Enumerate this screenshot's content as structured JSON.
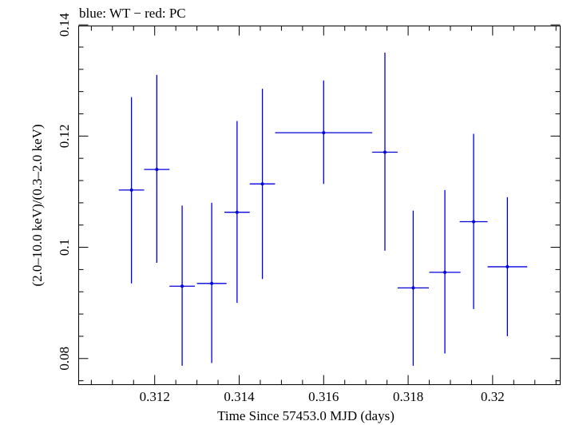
{
  "chart_data": {
    "type": "scatter",
    "title": "blue: WT − red: PC",
    "xlabel": "Time Since 57453.0 MJD (days)",
    "ylabel": "(2.0–10.0 keV)/(0.3–2.0 keV)",
    "xlim": [
      0.3102,
      0.3216
    ],
    "ylim": [
      0.0753,
      0.1398
    ],
    "xticks": [
      0.312,
      0.314,
      0.316,
      0.318,
      0.32
    ],
    "xtick_labels": [
      "0.312",
      "0.314",
      "0.316",
      "0.318",
      "0.32"
    ],
    "yticks": [
      0.08,
      0.1,
      0.12,
      0.14
    ],
    "ytick_labels": [
      "0.08",
      "0.1",
      "0.12",
      "0.14"
    ],
    "grid": false,
    "series": [
      {
        "color": "#0000dd",
        "points": [
          {
            "x": 0.31145,
            "xerr": 0.0003,
            "y": 0.1103,
            "ylo": 0.0935,
            "yhi": 0.127
          },
          {
            "x": 0.31205,
            "xerr": 0.0003,
            "y": 0.114,
            "ylo": 0.0972,
            "yhi": 0.131
          },
          {
            "x": 0.31265,
            "xerr": 0.0003,
            "y": 0.093,
            "ylo": 0.0787,
            "yhi": 0.1075
          },
          {
            "x": 0.31335,
            "xerr": 0.00035,
            "y": 0.0935,
            "ylo": 0.0792,
            "yhi": 0.108
          },
          {
            "x": 0.31395,
            "xerr": 0.0003,
            "y": 0.1063,
            "ylo": 0.09,
            "yhi": 0.1227
          },
          {
            "x": 0.31455,
            "xerr": 0.0003,
            "y": 0.1114,
            "ylo": 0.0943,
            "yhi": 0.1285
          },
          {
            "x": 0.316,
            "xerr": 0.00115,
            "y": 0.1206,
            "ylo": 0.1114,
            "yhi": 0.13
          },
          {
            "x": 0.31745,
            "xerr": 0.0003,
            "y": 0.1171,
            "ylo": 0.0994,
            "yhi": 0.135
          },
          {
            "x": 0.31812,
            "xerr": 0.00037,
            "y": 0.0927,
            "ylo": 0.0787,
            "yhi": 0.1066
          },
          {
            "x": 0.31887,
            "xerr": 0.00037,
            "y": 0.0955,
            "ylo": 0.0809,
            "yhi": 0.1103
          },
          {
            "x": 0.31955,
            "xerr": 0.00033,
            "y": 0.1046,
            "ylo": 0.0889,
            "yhi": 0.1204
          },
          {
            "x": 0.32035,
            "xerr": 0.00047,
            "y": 0.0965,
            "ylo": 0.084,
            "yhi": 0.109
          }
        ]
      }
    ]
  }
}
